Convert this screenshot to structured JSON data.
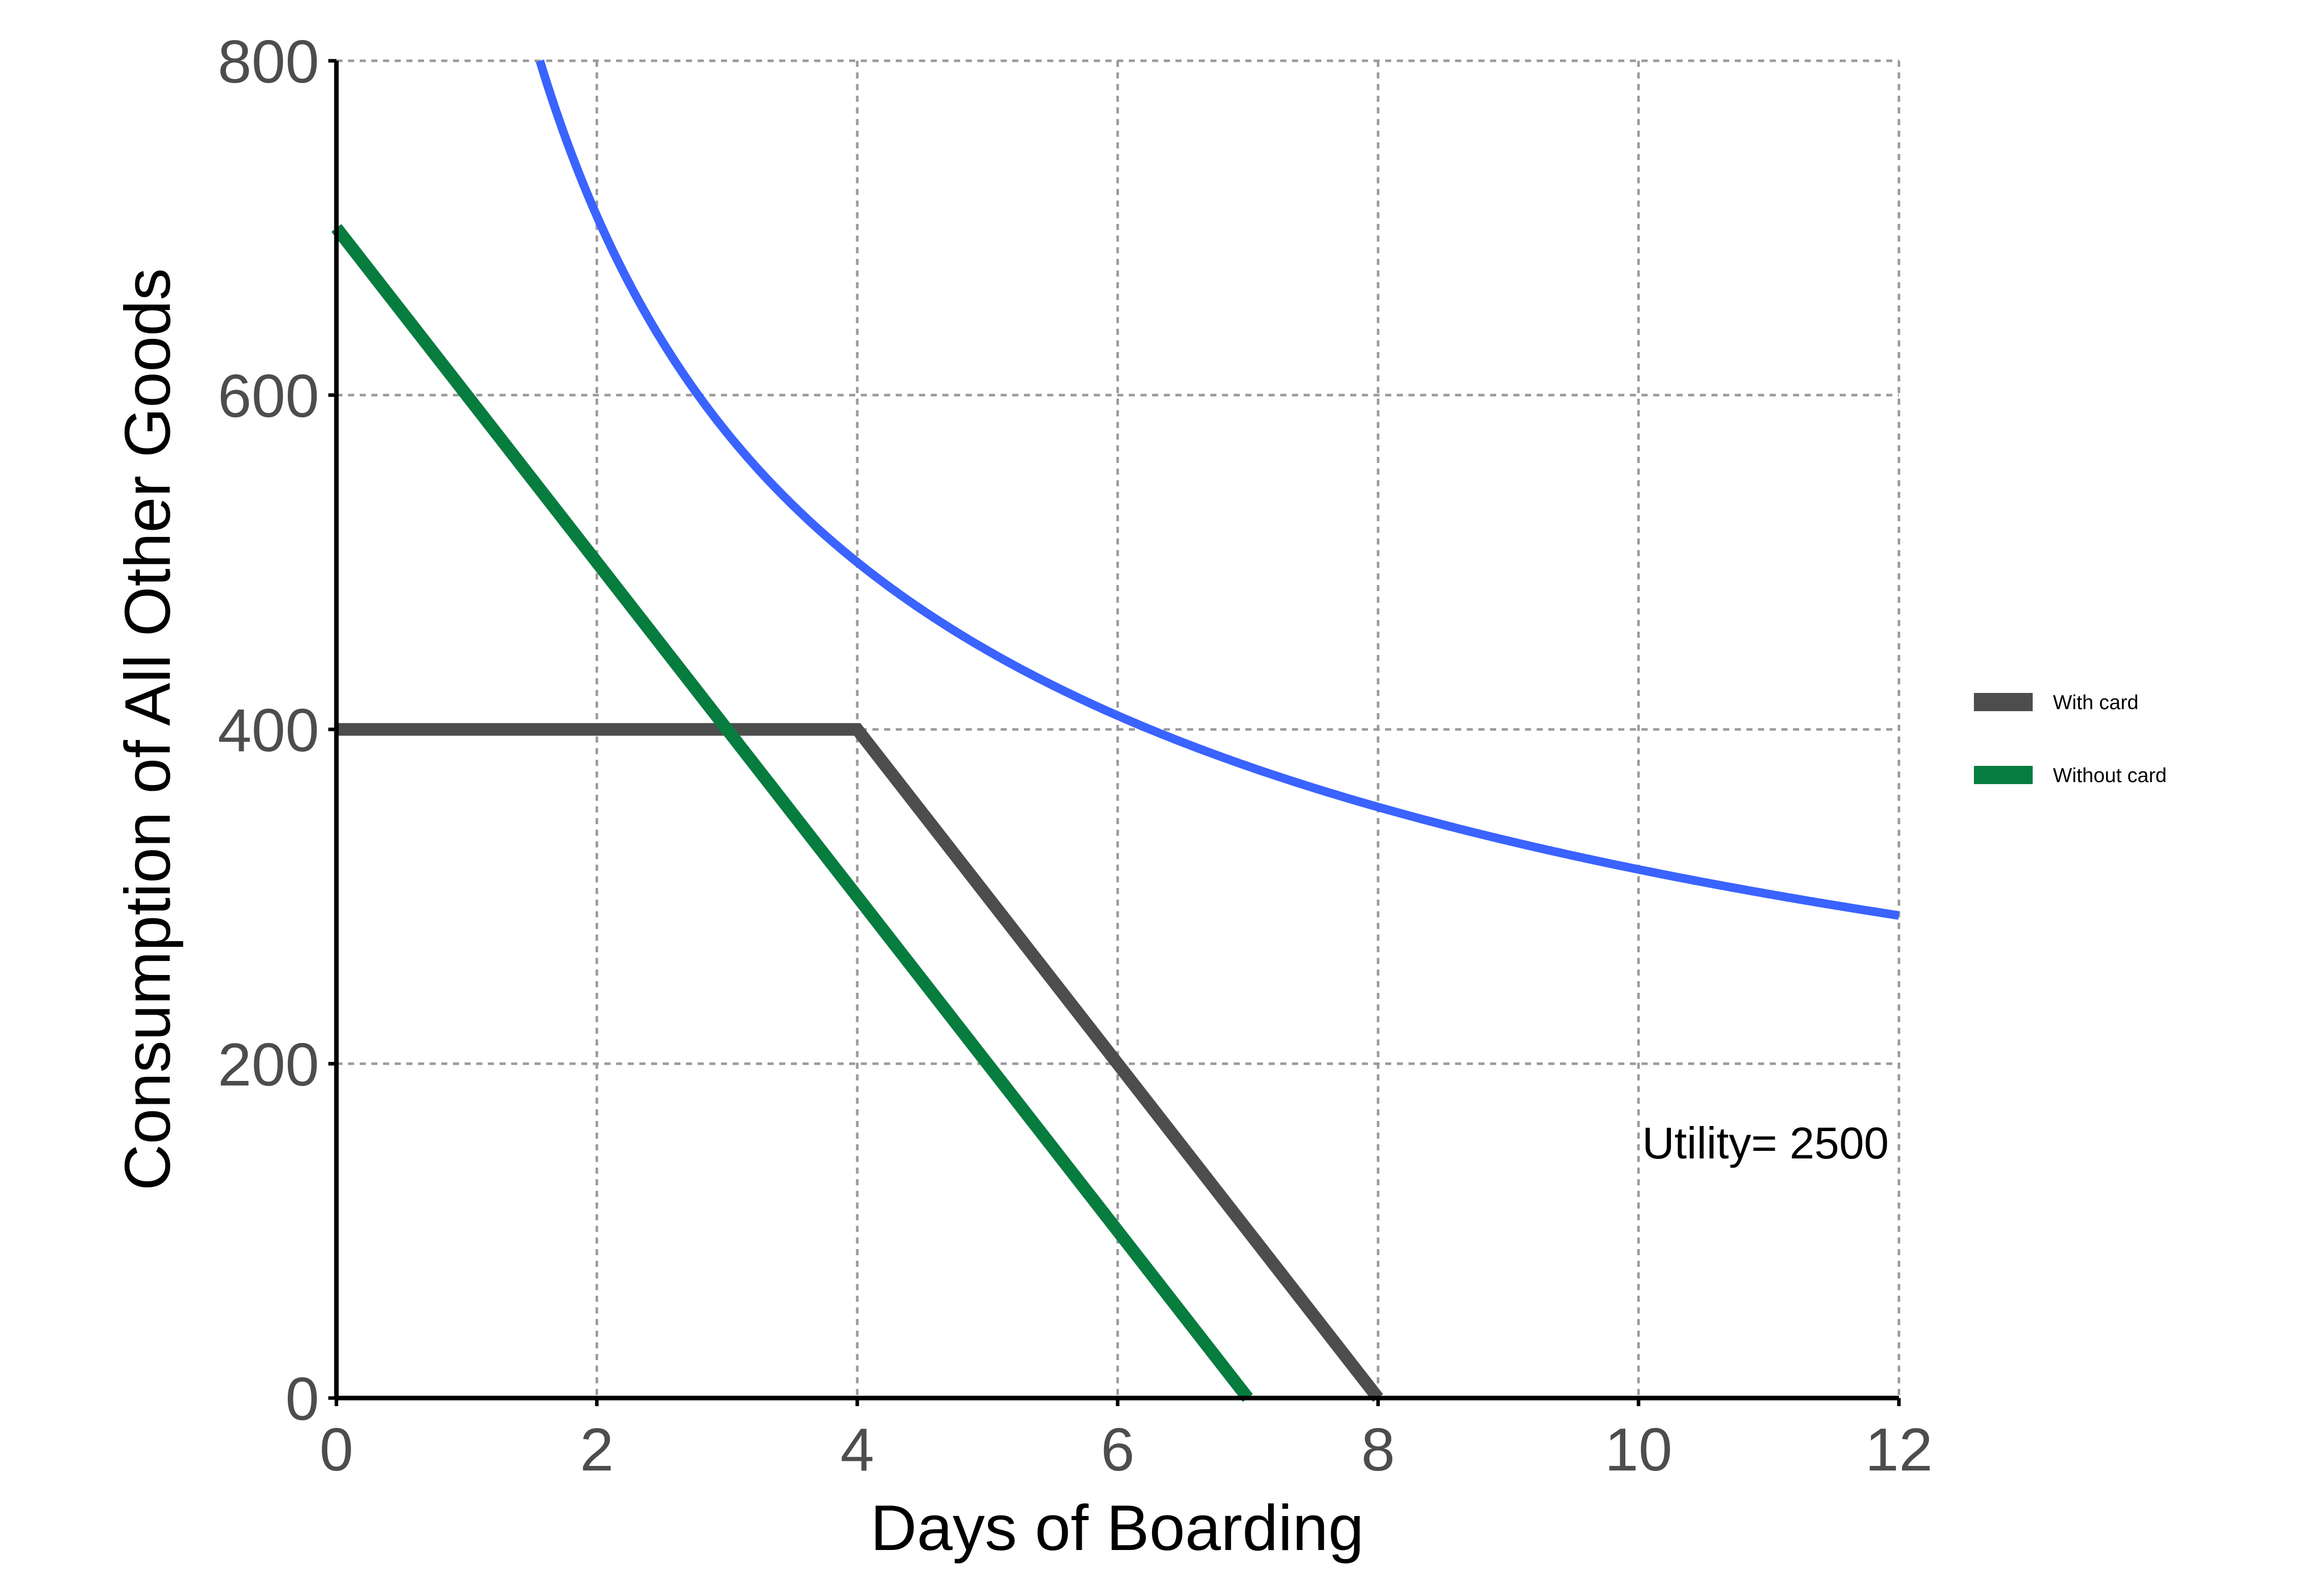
{
  "chart_data": {
    "type": "line",
    "xlabel": "Days of Boarding",
    "ylabel": "Consumption of All Other Goods",
    "xlim": [
      0,
      12
    ],
    "ylim": [
      0,
      800
    ],
    "xticks": [
      "0",
      "2",
      "4",
      "6",
      "8",
      "10",
      "12"
    ],
    "yticks": [
      "0",
      "200",
      "400",
      "600",
      "800"
    ],
    "grid": true,
    "legend_position": "right",
    "series": [
      {
        "name": "With card",
        "color": "#4d4d4d",
        "x": [
          0,
          4,
          8
        ],
        "y": [
          400,
          400,
          0
        ]
      },
      {
        "name": "Without card",
        "color": "#077c3f",
        "x": [
          0,
          7
        ],
        "y": [
          700,
          0
        ]
      }
    ],
    "indifference_curve": {
      "color": "#3a63ff",
      "function": "y = 1000 / sqrt(x)",
      "x_range": [
        0.1,
        12
      ],
      "label": "Utility= 2500",
      "label_x": 10.8,
      "label_y": 155
    }
  }
}
